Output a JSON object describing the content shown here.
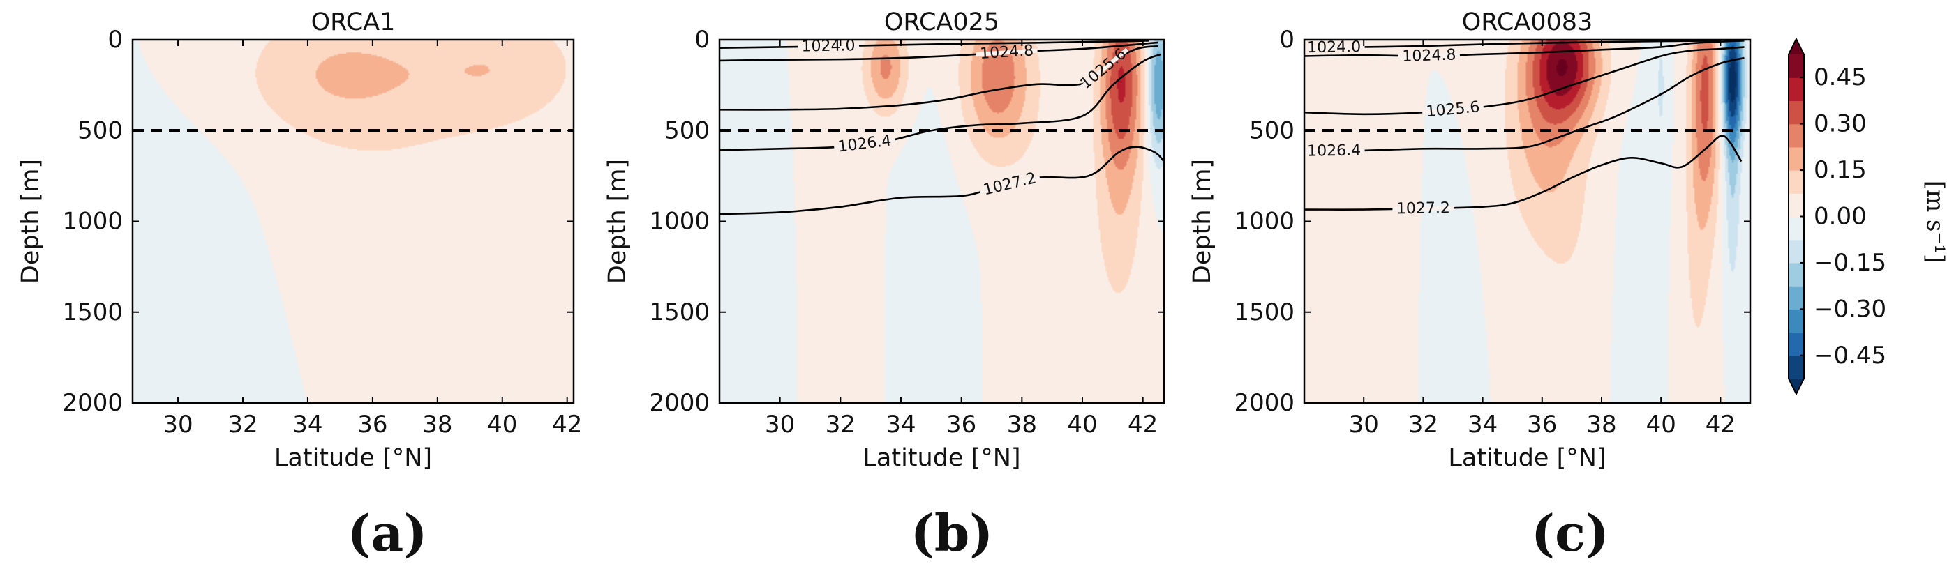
{
  "chart_data": [
    {
      "type": "contourf",
      "title": "ORCA1",
      "tag": "(a)",
      "xlabel": "Latitude [°N]",
      "ylabel": "Depth [m]",
      "xlim": [
        28.6,
        42.2
      ],
      "ylim": [
        2000,
        0
      ],
      "xticks": [
        "30",
        "32",
        "34",
        "36",
        "38",
        "40",
        "42"
      ],
      "yticks": [
        "0",
        "500",
        "1000",
        "1500",
        "2000"
      ],
      "reference_line_depth": 500,
      "velocity_blobs": [
        {
          "lat": 35.0,
          "depth": 180,
          "sLat": 2.2,
          "sDep": 250,
          "v": 0.13
        },
        {
          "lat": 40.0,
          "depth": 150,
          "sLat": 1.8,
          "sDep": 220,
          "v": 0.11
        },
        {
          "lat": 37.0,
          "depth": 700,
          "sLat": 3.5,
          "sDep": 700,
          "v": 0.05
        },
        {
          "lat": 30.5,
          "depth": 1400,
          "sLat": 2.0,
          "sDep": 700,
          "v": -0.04
        }
      ],
      "density_contours": []
    },
    {
      "type": "contourf",
      "title": "ORCA025",
      "tag": "(b)",
      "xlabel": "Latitude [°N]",
      "ylabel": "Depth [m]",
      "xlim": [
        28.0,
        42.7
      ],
      "ylim": [
        2000,
        0
      ],
      "xticks": [
        "30",
        "32",
        "34",
        "36",
        "38",
        "40",
        "42"
      ],
      "yticks": [
        "0",
        "500",
        "1000",
        "1500",
        "2000"
      ],
      "reference_line_depth": 500,
      "velocity_blobs": [
        {
          "lat": 33.5,
          "depth": 150,
          "sLat": 0.5,
          "sDep": 180,
          "v": 0.24
        },
        {
          "lat": 37.2,
          "depth": 200,
          "sLat": 0.8,
          "sDep": 300,
          "v": 0.28
        },
        {
          "lat": 41.3,
          "depth": 200,
          "sLat": 0.5,
          "sDep": 350,
          "v": 0.34
        },
        {
          "lat": 41.2,
          "depth": 900,
          "sLat": 0.6,
          "sDep": 500,
          "v": 0.12
        },
        {
          "lat": 42.5,
          "depth": 250,
          "sLat": 0.25,
          "sDep": 300,
          "v": -0.3
        },
        {
          "lat": 32.0,
          "depth": 1200,
          "sLat": 0.6,
          "sDep": 700,
          "v": 0.04
        },
        {
          "lat": 29.3,
          "depth": 1500,
          "sLat": 0.5,
          "sDep": 500,
          "v": -0.05
        },
        {
          "lat": 35.0,
          "depth": 1400,
          "sLat": 0.6,
          "sDep": 600,
          "v": -0.05
        },
        {
          "lat": 38.8,
          "depth": 1200,
          "sLat": 0.8,
          "sDep": 700,
          "v": 0.04
        }
      ],
      "density_contours": [
        {
          "label": "1024.0",
          "label_lat": 31.6,
          "points": [
            [
              28.0,
              45
            ],
            [
              30.0,
              40
            ],
            [
              32.0,
              35
            ],
            [
              34.0,
              28
            ],
            [
              36.0,
              22
            ],
            [
              38.0,
              18
            ],
            [
              40.0,
              12
            ],
            [
              41.5,
              8
            ],
            [
              42.2,
              5
            ]
          ]
        },
        {
          "label": "1024.8",
          "label_lat": 37.5,
          "points": [
            [
              28.0,
              115
            ],
            [
              30.0,
              110
            ],
            [
              32.0,
              108
            ],
            [
              34.0,
              100
            ],
            [
              36.0,
              85
            ],
            [
              38.0,
              65
            ],
            [
              40.0,
              50
            ],
            [
              41.5,
              30
            ],
            [
              42.5,
              15
            ]
          ]
        },
        {
          "label": "1025.6",
          "label_lat": 40.7,
          "points": [
            [
              28.0,
              385
            ],
            [
              30.0,
              385
            ],
            [
              32.0,
              380
            ],
            [
              34.0,
              360
            ],
            [
              35.5,
              330
            ],
            [
              37.0,
              280
            ],
            [
              38.5,
              245
            ],
            [
              39.5,
              250
            ],
            [
              40.2,
              230
            ],
            [
              41.0,
              120
            ],
            [
              41.8,
              50
            ],
            [
              42.5,
              35
            ]
          ]
        },
        {
          "label": "1026.4",
          "label_lat": 32.8,
          "points": [
            [
              28.0,
              608
            ],
            [
              30.0,
              600
            ],
            [
              32.0,
              590
            ],
            [
              33.5,
              560
            ],
            [
              35.0,
              500
            ],
            [
              36.5,
              470
            ],
            [
              38.0,
              460
            ],
            [
              40.0,
              420
            ],
            [
              41.0,
              250
            ],
            [
              42.0,
              120
            ],
            [
              42.6,
              80
            ]
          ]
        },
        {
          "label": "1027.2",
          "label_lat": 37.6,
          "points": [
            [
              28.0,
              960
            ],
            [
              30.0,
              950
            ],
            [
              32.0,
              920
            ],
            [
              34.0,
              870
            ],
            [
              36.0,
              860
            ],
            [
              37.0,
              820
            ],
            [
              38.5,
              760
            ],
            [
              40.2,
              750
            ],
            [
              41.2,
              620
            ],
            [
              41.8,
              590
            ],
            [
              42.4,
              620
            ],
            [
              42.7,
              670
            ]
          ]
        }
      ]
    },
    {
      "type": "contourf",
      "title": "ORCA0083",
      "tag": "(c)",
      "xlabel": "Latitude [°N]",
      "ylabel": "Depth [m]",
      "xlim": [
        28.0,
        43.0
      ],
      "ylim": [
        2000,
        0
      ],
      "xticks": [
        "30",
        "32",
        "34",
        "36",
        "38",
        "40",
        "42"
      ],
      "yticks": [
        "0",
        "500",
        "1000",
        "1500",
        "2000"
      ],
      "reference_line_depth": 500,
      "velocity_blobs": [
        {
          "lat": 36.8,
          "depth": 130,
          "sLat": 0.8,
          "sDep": 220,
          "v": 0.42
        },
        {
          "lat": 36.0,
          "depth": 450,
          "sLat": 0.9,
          "sDep": 450,
          "v": 0.18
        },
        {
          "lat": 41.5,
          "depth": 250,
          "sLat": 0.35,
          "sDep": 500,
          "v": 0.3
        },
        {
          "lat": 42.4,
          "depth": 200,
          "sLat": 0.25,
          "sDep": 250,
          "v": -0.5
        },
        {
          "lat": 42.4,
          "depth": 700,
          "sLat": 0.2,
          "sDep": 500,
          "v": -0.15
        },
        {
          "lat": 40.0,
          "depth": 250,
          "sLat": 0.2,
          "sDep": 400,
          "v": -0.08
        },
        {
          "lat": 37.0,
          "depth": 1100,
          "sLat": 0.8,
          "sDep": 600,
          "v": 0.05
        },
        {
          "lat": 41.2,
          "depth": 1200,
          "sLat": 0.4,
          "sDep": 700,
          "v": 0.08
        },
        {
          "lat": 30.5,
          "depth": 1300,
          "sLat": 0.5,
          "sDep": 500,
          "v": 0.03
        },
        {
          "lat": 33.0,
          "depth": 1500,
          "sLat": 0.4,
          "sDep": 400,
          "v": -0.04
        },
        {
          "lat": 39.2,
          "depth": 1400,
          "sLat": 0.5,
          "sDep": 600,
          "v": -0.04
        }
      ],
      "density_contours": [
        {
          "label": "1024.0",
          "label_lat": 29.0,
          "points": [
            [
              28.0,
              45
            ],
            [
              30.0,
              40
            ],
            [
              32.0,
              35
            ],
            [
              34.0,
              25
            ],
            [
              36.0,
              18
            ],
            [
              38.0,
              12
            ],
            [
              40.0,
              8
            ],
            [
              42.0,
              5
            ]
          ]
        },
        {
          "label": "1024.8",
          "label_lat": 32.2,
          "points": [
            [
              28.0,
              90
            ],
            [
              30.0,
              85
            ],
            [
              32.0,
              90
            ],
            [
              34.0,
              80
            ],
            [
              36.0,
              70
            ],
            [
              38.0,
              55
            ],
            [
              40.0,
              40
            ],
            [
              41.0,
              20
            ],
            [
              42.0,
              10
            ],
            [
              42.8,
              5
            ]
          ]
        },
        {
          "label": "1025.6",
          "label_lat": 33.0,
          "points": [
            [
              28.0,
              400
            ],
            [
              30.0,
              410
            ],
            [
              32.0,
              400
            ],
            [
              34.0,
              370
            ],
            [
              35.5,
              330
            ],
            [
              37.0,
              250
            ],
            [
              38.5,
              170
            ],
            [
              40.0,
              90
            ],
            [
              41.0,
              60
            ],
            [
              42.0,
              50
            ],
            [
              42.8,
              40
            ]
          ]
        },
        {
          "label": "1026.4",
          "label_lat": 29.0,
          "points": [
            [
              28.0,
              615
            ],
            [
              30.0,
              610
            ],
            [
              32.0,
              600
            ],
            [
              34.0,
              600
            ],
            [
              35.5,
              590
            ],
            [
              36.5,
              540
            ],
            [
              37.5,
              480
            ],
            [
              38.5,
              420
            ],
            [
              40.0,
              300
            ],
            [
              41.0,
              200
            ],
            [
              42.0,
              130
            ],
            [
              42.8,
              100
            ]
          ]
        },
        {
          "label": "1027.2",
          "label_lat": 32.0,
          "points": [
            [
              28.0,
              935
            ],
            [
              30.0,
              935
            ],
            [
              32.0,
              930
            ],
            [
              34.0,
              920
            ],
            [
              35.0,
              900
            ],
            [
              36.0,
              840
            ],
            [
              37.0,
              760
            ],
            [
              38.0,
              690
            ],
            [
              39.0,
              650
            ],
            [
              40.0,
              680
            ],
            [
              40.7,
              700
            ],
            [
              41.5,
              600
            ],
            [
              42.0,
              530
            ],
            [
              42.3,
              560
            ],
            [
              42.7,
              670
            ]
          ]
        }
      ]
    }
  ],
  "colorbar": {
    "min": -0.525,
    "max": 0.525,
    "levels": [
      -0.525,
      -0.45,
      -0.375,
      -0.3,
      -0.225,
      -0.15,
      -0.075,
      0.0,
      0.075,
      0.15,
      0.225,
      0.3,
      0.375,
      0.45,
      0.525
    ],
    "ticks": [
      0.45,
      0.3,
      0.15,
      0.0,
      -0.15,
      -0.3,
      -0.45
    ],
    "tick_labels": [
      "0.45",
      "0.30",
      "0.15",
      "0.00",
      "−0.15",
      "−0.30",
      "−0.45"
    ],
    "label": "[m s⁻¹]",
    "extend": "both",
    "colormap": "RdBu_r",
    "colors": [
      "#053061",
      "#2166ac",
      "#4393c3",
      "#92c5de",
      "#d1e5f0",
      "#f7f7f7",
      "#fddbc7",
      "#f4a582",
      "#d6604d",
      "#b2182b",
      "#67001f"
    ]
  }
}
